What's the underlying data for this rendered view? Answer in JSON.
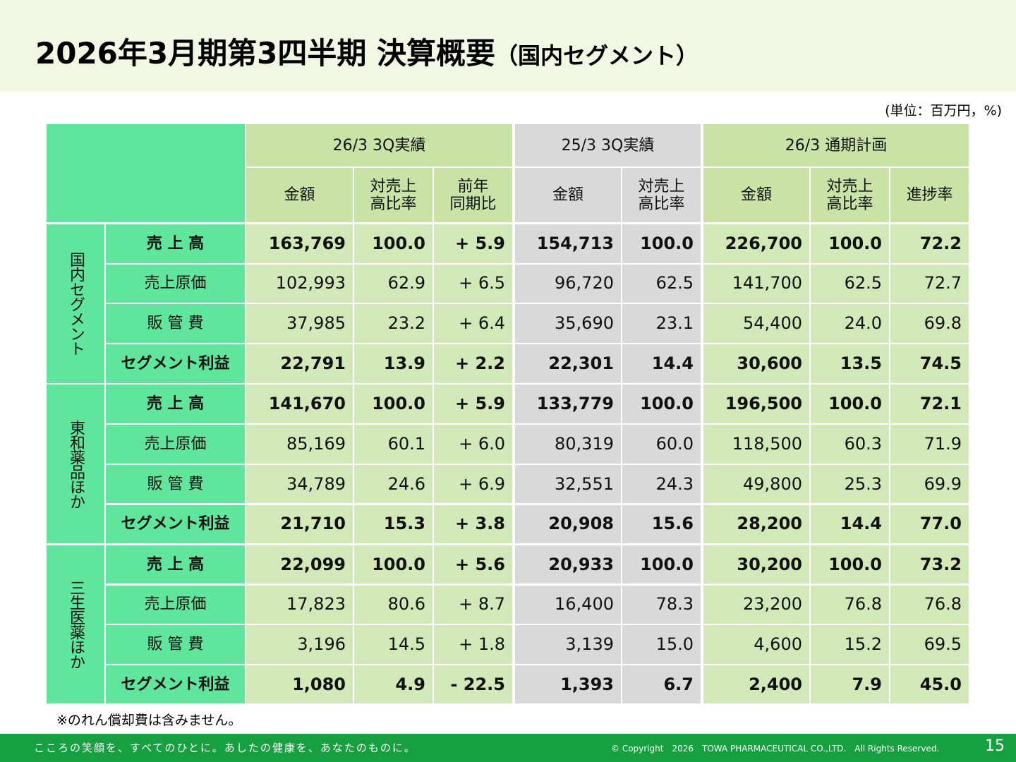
{
  "header": {
    "title": "2026年3月期第3四半期 決算概要",
    "subtitle": "（国内セグメント）"
  },
  "unit": "(単位：百万円，%)",
  "table": {
    "groups": [
      "26/3 3Q実績",
      "25/3 3Q実績",
      "26/3 通期計画"
    ],
    "columns": [
      "金額",
      "対売上\n高比率",
      "前年\n同期比",
      "金額",
      "対売上\n高比率",
      "金額",
      "対売上\n高比率",
      "進捗率"
    ],
    "segments": [
      {
        "name": "国内セグメント",
        "rows": [
          {
            "label": "売 上 高",
            "cells": [
              "163,769",
              "100.0",
              "+ 5.9",
              "154,713",
              "100.0",
              "226,700",
              "100.0",
              "72.2"
            ]
          },
          {
            "label": "売上原価",
            "cells": [
              "102,993",
              "62.9",
              "+ 6.5",
              "96,720",
              "62.5",
              "141,700",
              "62.5",
              "72.7"
            ]
          },
          {
            "label": "販 管 費",
            "cells": [
              "37,985",
              "23.2",
              "+ 6.4",
              "35,690",
              "23.1",
              "54,400",
              "24.0",
              "69.8"
            ]
          },
          {
            "label": "セグメント利益",
            "cells": [
              "22,791",
              "13.9",
              "+ 2.2",
              "22,301",
              "14.4",
              "30,600",
              "13.5",
              "74.5"
            ]
          }
        ]
      },
      {
        "name": "東和薬品ほか",
        "rows": [
          {
            "label": "売 上 高",
            "cells": [
              "141,670",
              "100.0",
              "+ 5.9",
              "133,779",
              "100.0",
              "196,500",
              "100.0",
              "72.1"
            ]
          },
          {
            "label": "売上原価",
            "cells": [
              "85,169",
              "60.1",
              "+ 6.0",
              "80,319",
              "60.0",
              "118,500",
              "60.3",
              "71.9"
            ]
          },
          {
            "label": "販 管 費",
            "cells": [
              "34,789",
              "24.6",
              "+ 6.9",
              "32,551",
              "24.3",
              "49,800",
              "25.3",
              "69.9"
            ]
          },
          {
            "label": "セグメント利益",
            "cells": [
              "21,710",
              "15.3",
              "+ 3.8",
              "20,908",
              "15.6",
              "28,200",
              "14.4",
              "77.0"
            ]
          }
        ]
      },
      {
        "name": "三生医薬ほか",
        "rows": [
          {
            "label": "売 上 高",
            "cells": [
              "22,099",
              "100.0",
              "+ 5.6",
              "20,933",
              "100.0",
              "30,200",
              "100.0",
              "73.2"
            ]
          },
          {
            "label": "売上原価",
            "cells": [
              "17,823",
              "80.6",
              "+ 8.7",
              "16,400",
              "78.3",
              "23,200",
              "76.8",
              "76.8"
            ]
          },
          {
            "label": "販 管 費",
            "cells": [
              "3,196",
              "14.5",
              "+ 1.8",
              "3,139",
              "15.0",
              "4,600",
              "15.2",
              "69.5"
            ]
          },
          {
            "label": "セグメント利益",
            "cells": [
              "1,080",
              "4.9",
              "- 22.5",
              "1,393",
              "6.7",
              "2,400",
              "7.9",
              "45.0"
            ]
          }
        ]
      }
    ]
  },
  "note": "※のれん償却費は含みません。",
  "footer": {
    "slogan": "こころの笑顔を、すべてのひとに。あしたの健康を、あなたのものに。",
    "copyright": "© Copyright　2026　TOWA PHARMACEUTICAL CO.,LTD.　All Rights Reserved.",
    "page": "15"
  }
}
